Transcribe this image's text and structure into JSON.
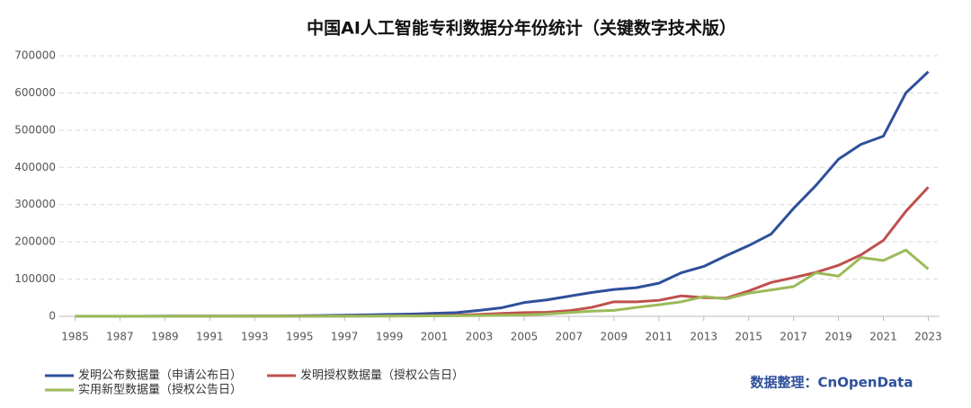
{
  "chart_data": {
    "type": "line",
    "title": "中国AI人工智能专利数据分年份统计（关键数字技术版）",
    "source": "数据整理：CnOpenData",
    "x": [
      1985,
      1986,
      1987,
      1988,
      1989,
      1990,
      1991,
      1992,
      1993,
      1994,
      1995,
      1996,
      1997,
      1998,
      1999,
      2000,
      2001,
      2002,
      2003,
      2004,
      2005,
      2006,
      2007,
      2008,
      2009,
      2010,
      2011,
      2012,
      2013,
      2014,
      2015,
      2016,
      2017,
      2018,
      2019,
      2020,
      2021,
      2022,
      2023
    ],
    "series": [
      {
        "name": "发明公布数据量（申请公布日）",
        "color": "#2e4f9c",
        "values": [
          300,
          300,
          400,
          400,
          500,
          500,
          600,
          700,
          800,
          1000,
          1500,
          2000,
          3000,
          4000,
          5000,
          6000,
          8000,
          10000,
          16000,
          23000,
          37000,
          44000,
          54000,
          64000,
          72000,
          77000,
          89000,
          117000,
          134000,
          163000,
          190000,
          221000,
          290000,
          352000,
          422000,
          462000,
          484000,
          600000,
          657000
        ]
      },
      {
        "name": "发明授权数据量（授权公告日）",
        "color": "#c0504d",
        "values": [
          100,
          100,
          100,
          100,
          100,
          200,
          200,
          200,
          300,
          300,
          400,
          500,
          600,
          800,
          1000,
          1500,
          2000,
          3000,
          5000,
          8000,
          10000,
          11000,
          15000,
          24000,
          39000,
          39000,
          43000,
          55000,
          50000,
          49000,
          68000,
          91000,
          104000,
          118000,
          137000,
          165000,
          204000,
          282000,
          347000
        ]
      },
      {
        "name": "实用新型数据量（授权公告日）",
        "color": "#9bbb59",
        "values": [
          100,
          100,
          100,
          100,
          100,
          200,
          200,
          200,
          200,
          200,
          300,
          400,
          500,
          600,
          800,
          1000,
          1200,
          1500,
          2000,
          3000,
          4000,
          6000,
          10000,
          14000,
          16000,
          24000,
          31000,
          39000,
          53000,
          47000,
          62000,
          71000,
          80000,
          117000,
          108000,
          158000,
          150000,
          178000,
          127000
        ]
      }
    ],
    "xlim": [
      1984.3,
      2023.5
    ],
    "xticks": [
      1985,
      1987,
      1989,
      1991,
      1993,
      1995,
      1997,
      1999,
      2001,
      2003,
      2005,
      2007,
      2009,
      2011,
      2013,
      2015,
      2017,
      2019,
      2021,
      2023
    ],
    "ylim": [
      0,
      700000
    ],
    "yticks": [
      0,
      100000,
      200000,
      300000,
      400000,
      500000,
      600000,
      700000
    ],
    "grid": true
  }
}
